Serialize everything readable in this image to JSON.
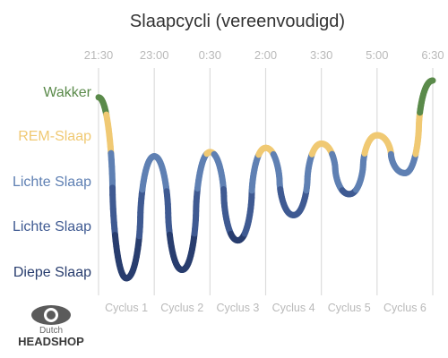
{
  "chart_data": {
    "type": "line",
    "title": "Slaapcycli (vereenvoudigd)",
    "x_ticks": [
      "21:30",
      "23:00",
      "0:30",
      "2:00",
      "3:30",
      "5:00",
      "6:30"
    ],
    "y_categories": [
      {
        "label": "Wakker",
        "color": "#5a8a4a"
      },
      {
        "label": "REM-Slaap",
        "color": "#f0c973"
      },
      {
        "label": "Lichte Slaap",
        "color": "#5f80b3"
      },
      {
        "label": "Lichte Slaap",
        "color": "#3f5a92"
      },
      {
        "label": "Diepe Slaap",
        "color": "#283d6e"
      }
    ],
    "cycles": [
      "Cyclus 1",
      "Cyclus 2",
      "Cyclus 3",
      "Cyclus 4",
      "Cyclus 5",
      "Cyclus 6"
    ],
    "level_scale": "0 = Diepe Slaap bottom, 5 = Wakker top (approximate stage depth)",
    "series": [
      {
        "points": [
          {
            "time": "21:30",
            "level": 4.6
          },
          {
            "time": "22:15",
            "level": 0.3
          },
          {
            "time": "23:00",
            "level": 3.2
          },
          {
            "time": "23:45",
            "level": 0.5
          },
          {
            "time": "0:30",
            "level": 3.3
          },
          {
            "time": "1:15",
            "level": 1.2
          },
          {
            "time": "2:00",
            "level": 3.4
          },
          {
            "time": "2:45",
            "level": 1.8
          },
          {
            "time": "3:30",
            "level": 3.5
          },
          {
            "time": "4:15",
            "level": 2.3
          },
          {
            "time": "5:00",
            "level": 3.7
          },
          {
            "time": "5:45",
            "level": 2.8
          },
          {
            "time": "6:30",
            "level": 5.0
          }
        ]
      }
    ],
    "grid": true
  },
  "logo": {
    "line1": "Dutch",
    "line2": "HEADSHOP"
  }
}
